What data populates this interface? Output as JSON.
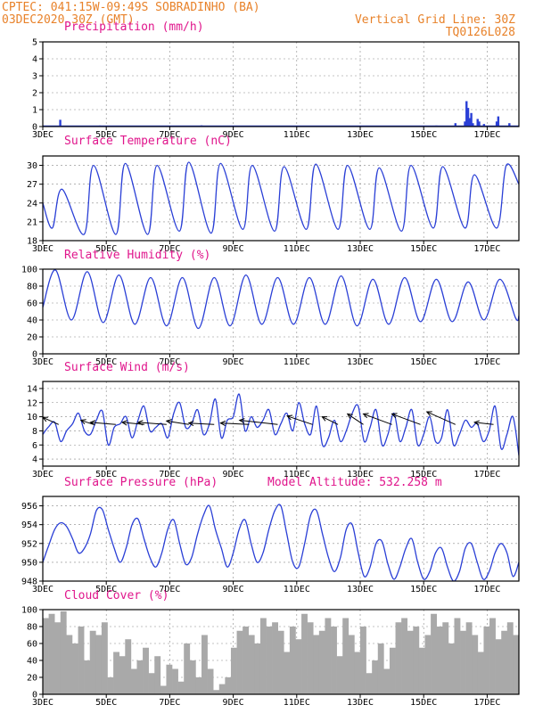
{
  "header": {
    "line1_left": "CPTEC:  041:15W-09:49S  SOBRADINHO (BA)",
    "line2_left": "03DEC2020 30Z (GMT)",
    "line1_right": "Vertical Grid Line: 30Z",
    "line2_right": "TQ0126L028"
  },
  "colors": {
    "series": "#2a3fd6",
    "cloud": "#a9a9a9",
    "header": "#e8822a",
    "titles": "#e0168c",
    "grid": "#888888"
  },
  "x_axis": {
    "range_days": [
      3.0,
      18.0
    ],
    "tick_days": [
      3,
      5,
      7,
      9,
      11,
      13,
      15,
      17
    ],
    "tick_labels": [
      "3DEC",
      "5DEC",
      "7DEC",
      "9DEC",
      "11DEC",
      "13DEC",
      "15DEC",
      "17DEC"
    ]
  },
  "chart_data": [
    {
      "id": "precipitation",
      "type": "bar",
      "title": "Precipitation (mm/h)",
      "ylim": [
        0,
        5
      ],
      "yticks": [
        0,
        1,
        2,
        3,
        4,
        5
      ],
      "x": [
        3.55,
        4.8,
        6.5,
        8.0,
        10.2,
        11.5,
        13.8,
        15.4,
        16.0,
        16.3,
        16.35,
        16.4,
        16.45,
        16.5,
        16.55,
        16.7,
        16.75,
        16.9,
        17.3,
        17.35,
        17.7
      ],
      "values": [
        0.4,
        0.06,
        0.05,
        0.07,
        0.05,
        0.05,
        0.05,
        0.06,
        0.2,
        0.3,
        1.5,
        1.1,
        0.5,
        0.8,
        0.2,
        0.45,
        0.3,
        0.15,
        0.3,
        0.6,
        0.2
      ]
    },
    {
      "id": "temperature",
      "type": "line",
      "title": "Surface Temperature (nC)",
      "ylim": [
        18,
        31.5
      ],
      "yticks": [
        18,
        21,
        24,
        27,
        30
      ],
      "peaks": [
        [
          3.6,
          26.2
        ],
        [
          4.6,
          30.0
        ],
        [
          5.6,
          30.3
        ],
        [
          6.6,
          30.0
        ],
        [
          7.6,
          30.5
        ],
        [
          8.6,
          30.3
        ],
        [
          9.6,
          30.0
        ],
        [
          10.6,
          29.8
        ],
        [
          11.6,
          30.2
        ],
        [
          12.6,
          30.0
        ],
        [
          13.6,
          29.6
        ],
        [
          14.6,
          30.0
        ],
        [
          15.6,
          29.8
        ],
        [
          16.6,
          28.5
        ],
        [
          17.6,
          30.0
        ]
      ],
      "troughs": [
        [
          3.0,
          24.0
        ],
        [
          3.3,
          20.0
        ],
        [
          4.3,
          19.0
        ],
        [
          5.3,
          19.0
        ],
        [
          6.3,
          19.0
        ],
        [
          7.3,
          19.5
        ],
        [
          8.3,
          19.2
        ],
        [
          9.3,
          19.8
        ],
        [
          10.3,
          19.5
        ],
        [
          11.3,
          19.8
        ],
        [
          12.3,
          19.8
        ],
        [
          13.3,
          19.8
        ],
        [
          14.3,
          19.5
        ],
        [
          15.3,
          20.0
        ],
        [
          16.3,
          20.0
        ],
        [
          17.3,
          20.0
        ],
        [
          18.0,
          27.0
        ]
      ]
    },
    {
      "id": "humidity",
      "type": "line",
      "title": "Relative Humidity (%)",
      "ylim": [
        0,
        100
      ],
      "yticks": [
        0,
        20,
        40,
        60,
        80,
        100
      ],
      "peaks": [
        [
          3.0,
          55
        ],
        [
          3.4,
          99
        ],
        [
          4.4,
          97
        ],
        [
          5.4,
          93
        ],
        [
          6.4,
          90
        ],
        [
          7.4,
          90
        ],
        [
          8.4,
          90
        ],
        [
          9.4,
          93
        ],
        [
          10.4,
          90
        ],
        [
          11.4,
          90
        ],
        [
          12.4,
          92
        ],
        [
          13.4,
          88
        ],
        [
          14.4,
          90
        ],
        [
          15.4,
          88
        ],
        [
          16.4,
          85
        ],
        [
          17.4,
          88
        ]
      ],
      "troughs": [
        [
          3.9,
          40
        ],
        [
          4.9,
          37
        ],
        [
          5.9,
          35
        ],
        [
          6.9,
          33
        ],
        [
          7.9,
          30
        ],
        [
          8.9,
          33
        ],
        [
          9.9,
          35
        ],
        [
          10.9,
          35
        ],
        [
          11.9,
          35
        ],
        [
          12.9,
          33
        ],
        [
          13.9,
          35
        ],
        [
          14.9,
          38
        ],
        [
          15.9,
          38
        ],
        [
          16.9,
          40
        ],
        [
          17.9,
          42
        ],
        [
          18.0,
          45
        ]
      ]
    },
    {
      "id": "wind",
      "type": "line",
      "title": "Surface Wind (m/s)",
      "ylim": [
        3,
        15
      ],
      "yticks": [
        4,
        6,
        8,
        10,
        12,
        14
      ],
      "values": [
        7.5,
        8.6,
        9.2,
        6.5,
        8.0,
        9.0,
        10.5,
        8.0,
        7.5,
        9.5,
        10.8,
        6.0,
        8.5,
        9.0,
        10.0,
        7.0,
        9.5,
        11.5,
        8.0,
        8.5,
        9.0,
        7.0,
        10.5,
        12.0,
        8.5,
        9.0,
        11.0,
        7.5,
        9.0,
        12.5,
        7.0,
        9.5,
        10.0,
        13.2,
        8.0,
        10.0,
        8.5,
        9.5,
        11.0,
        7.5,
        9.0,
        10.5,
        8.0,
        12.0,
        9.0,
        7.5,
        11.5,
        6.0,
        7.0,
        9.5,
        6.5,
        8.0,
        10.5,
        11.5,
        6.5,
        8.5,
        11.0,
        6.0,
        7.5,
        10.5,
        6.5,
        8.5,
        11.0,
        6.0,
        7.5,
        10.0,
        6.5,
        7.0,
        11.0,
        6.0,
        7.5,
        9.5,
        8.5,
        9.0,
        6.5,
        8.0,
        11.5,
        5.5,
        7.5,
        10.0,
        4.5
      ],
      "wind_arrows_x": [
        3.5,
        4.6,
        5.3,
        6.2,
        6.9,
        7.6,
        8.4,
        9.5,
        10.4,
        11.5,
        12.3,
        13.1,
        14.0,
        14.9,
        16.0,
        17.2
      ],
      "wind_arrows_dx_days": [
        0.5,
        0.4,
        0.8,
        0.7,
        0.9,
        0.7,
        0.8,
        0.9,
        1.2,
        0.8,
        0.5,
        0.5,
        0.9,
        0.9,
        0.9,
        0.6
      ],
      "wind_arrows_dy": [
        1.0,
        0.6,
        0.3,
        0.3,
        0.3,
        0.5,
        0.2,
        0.2,
        0.6,
        1.2,
        1.1,
        1.5,
        1.5,
        1.5,
        1.8,
        0.3
      ]
    },
    {
      "id": "pressure",
      "type": "line",
      "title": "Surface Pressure (hPa)",
      "subtitle": "Model Altitude: 532.258  m",
      "ylim": [
        948,
        957
      ],
      "yticks": [
        948,
        950,
        952,
        954,
        956
      ],
      "values": [
        950.0,
        951.8,
        953.5,
        954.2,
        953.8,
        952.5,
        951.0,
        951.5,
        953.0,
        955.5,
        955.6,
        953.5,
        951.5,
        950.0,
        951.5,
        954.0,
        954.6,
        952.5,
        950.5,
        949.5,
        951.0,
        953.5,
        954.5,
        952.0,
        949.8,
        950.5,
        953.0,
        955.0,
        956.0,
        953.5,
        951.5,
        949.5,
        951.0,
        953.5,
        954.5,
        952.0,
        950.0,
        951.0,
        953.5,
        955.5,
        956.0,
        953.0,
        950.0,
        949.5,
        952.0,
        955.0,
        955.5,
        953.0,
        950.5,
        949.0,
        950.5,
        953.5,
        954.0,
        951.0,
        948.5,
        949.5,
        952.0,
        952.2,
        949.8,
        948.2,
        949.5,
        951.5,
        952.5,
        950.0,
        948.2,
        949.0,
        951.0,
        951.5,
        949.5,
        948.0,
        949.0,
        951.5,
        952.0,
        950.0,
        948.2,
        949.0,
        951.0,
        952.0,
        951.0,
        948.5,
        950.0
      ],
      "ylabel": "",
      "xlabel": ""
    },
    {
      "id": "cloud",
      "type": "area",
      "title": "Cloud Cover (%)",
      "ylim": [
        0,
        100
      ],
      "yticks": [
        0,
        20,
        40,
        60,
        80,
        100
      ],
      "values": [
        90,
        95,
        85,
        98,
        70,
        60,
        80,
        40,
        75,
        70,
        85,
        20,
        50,
        45,
        65,
        30,
        40,
        55,
        25,
        45,
        10,
        35,
        30,
        15,
        60,
        40,
        20,
        70,
        30,
        5,
        12,
        20,
        55,
        75,
        80,
        70,
        60,
        90,
        80,
        85,
        75,
        50,
        80,
        65,
        95,
        85,
        70,
        75,
        90,
        80,
        45,
        90,
        70,
        50,
        80,
        25,
        40,
        60,
        30,
        55,
        85,
        90,
        75,
        80,
        55,
        70,
        95,
        80,
        85,
        60,
        90,
        75,
        85,
        70,
        50,
        80,
        90,
        65,
        75,
        85,
        70
      ]
    }
  ]
}
